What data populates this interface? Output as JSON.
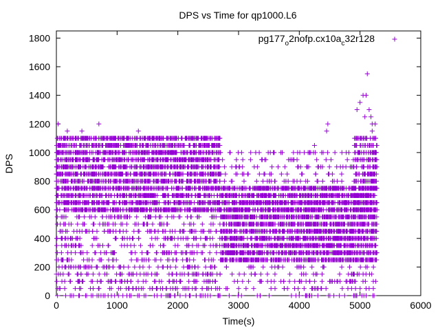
{
  "chart_data": {
    "type": "scatter",
    "title": "DPS vs Time for qp1000.L6",
    "xlabel": "Time(s)",
    "ylabel": "DPS",
    "xlim": [
      0,
      6000
    ],
    "ylim": [
      0,
      1850
    ],
    "xticks": [
      0,
      1000,
      2000,
      3000,
      4000,
      5000,
      6000
    ],
    "yticks": [
      0,
      200,
      400,
      600,
      800,
      1000,
      1200,
      1400,
      1600,
      1800
    ],
    "grid": false,
    "legend_position": "top-right",
    "marker": "plus",
    "series": [
      {
        "name_parts": [
          "pg177",
          "o",
          "2nofp.cx10a",
          "c",
          "32r128"
        ],
        "color": "#9400d3",
        "x_range": [
          0,
          5280
        ],
        "value_levels": [
          0,
          50,
          100,
          150,
          200,
          250,
          300,
          350,
          400,
          450,
          500,
          550,
          600,
          650,
          700,
          750,
          800,
          850,
          900,
          950,
          1000,
          1050,
          1100
        ],
        "points": [
          [
            30,
            1200
          ],
          [
            700,
            1200
          ],
          [
            180,
            1150
          ],
          [
            420,
            1150
          ],
          [
            1350,
            1150
          ],
          [
            1100,
            1100
          ],
          [
            640,
            1100
          ],
          [
            3200,
            1000
          ],
          [
            4250,
            1050
          ],
          [
            4450,
            1150
          ],
          [
            4470,
            1200
          ],
          [
            3450,
            950
          ],
          [
            3550,
            900
          ],
          [
            3650,
            900
          ],
          [
            3850,
            950
          ],
          [
            3150,
            850
          ],
          [
            3300,
            750
          ],
          [
            3400,
            800
          ],
          [
            4050,
            850
          ],
          [
            4150,
            700
          ],
          [
            4950,
            1300
          ],
          [
            5000,
            1350
          ],
          [
            5050,
            1400
          ],
          [
            5100,
            1400
          ],
          [
            5150,
            1300
          ],
          [
            5200,
            1200
          ],
          [
            5080,
            1250
          ],
          [
            5120,
            1550
          ],
          [
            5200,
            1150
          ],
          [
            5250,
            1200
          ],
          [
            5180,
            1250
          ],
          [
            2150,
            50
          ],
          [
            2300,
            50
          ],
          [
            2400,
            50
          ],
          [
            1150,
            50
          ],
          [
            4800,
            50
          ],
          [
            3600,
            50
          ],
          [
            4500,
            100
          ],
          [
            5150,
            50
          ],
          [
            5100,
            0
          ],
          [
            4850,
            100
          ],
          [
            4900,
            150
          ],
          [
            60,
            50
          ]
        ]
      }
    ]
  }
}
